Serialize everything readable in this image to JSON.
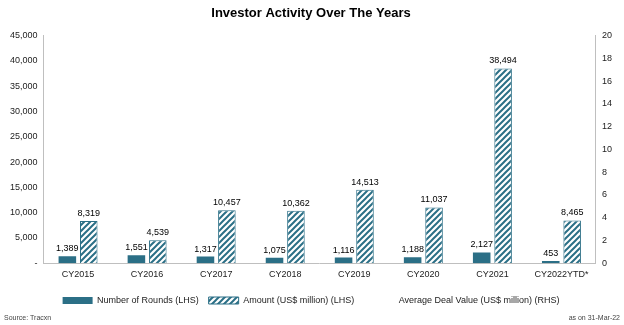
{
  "chart_data": {
    "type": "bar",
    "title": "Investor Activity Over The Years",
    "categories": [
      "CY2015",
      "CY2016",
      "CY2017",
      "CY2018",
      "CY2019",
      "CY2020",
      "CY2021",
      "CY2022YTD*"
    ],
    "series": [
      {
        "name": "Number of Rounds (LHS)",
        "color": "#2b6f86",
        "values": [
          1389,
          1551,
          1317,
          1075,
          1116,
          1188,
          2127,
          453
        ],
        "value_labels": [
          "1,389",
          "1,551",
          "1,317",
          "1,075",
          "1,116",
          "1,188",
          "2,127",
          "453"
        ]
      },
      {
        "name": "Amount (US$ million) (LHS)",
        "color": "#2b6f86",
        "values": [
          8319,
          4539,
          10457,
          10362,
          14513,
          11037,
          38494,
          8465
        ],
        "value_labels": [
          "8,319",
          "4,539",
          "10,457",
          "10,362",
          "14,513",
          "11,037",
          "38,494",
          "8,465"
        ]
      },
      {
        "name": "Average Deal Value (US$ million) (RHS)",
        "type": "line",
        "axis": "y2",
        "color": "#ffffff",
        "values": [
          null,
          null,
          null,
          null,
          null,
          null,
          null,
          null
        ]
      }
    ],
    "ylim": [
      0,
      45000
    ],
    "yticks": [
      {
        "value": 0,
        "label": "-"
      },
      {
        "value": 5000,
        "label": "5,000"
      },
      {
        "value": 10000,
        "label": "10,000"
      },
      {
        "value": 15000,
        "label": "15,000"
      },
      {
        "value": 20000,
        "label": "20,000"
      },
      {
        "value": 25000,
        "label": "25,000"
      },
      {
        "value": 30000,
        "label": "30,000"
      },
      {
        "value": 35000,
        "label": "35,000"
      },
      {
        "value": 40000,
        "label": "40,000"
      },
      {
        "value": 45000,
        "label": "45,000"
      }
    ],
    "y2lim": [
      0,
      20
    ],
    "y2ticks": [
      0,
      2,
      4,
      6,
      8,
      10,
      12,
      14,
      16,
      18,
      20
    ],
    "grid": false,
    "legend": "bottom",
    "data_labels": true,
    "annotations": [
      "Source: Tracxn",
      "as on 31-Mar-22"
    ]
  }
}
